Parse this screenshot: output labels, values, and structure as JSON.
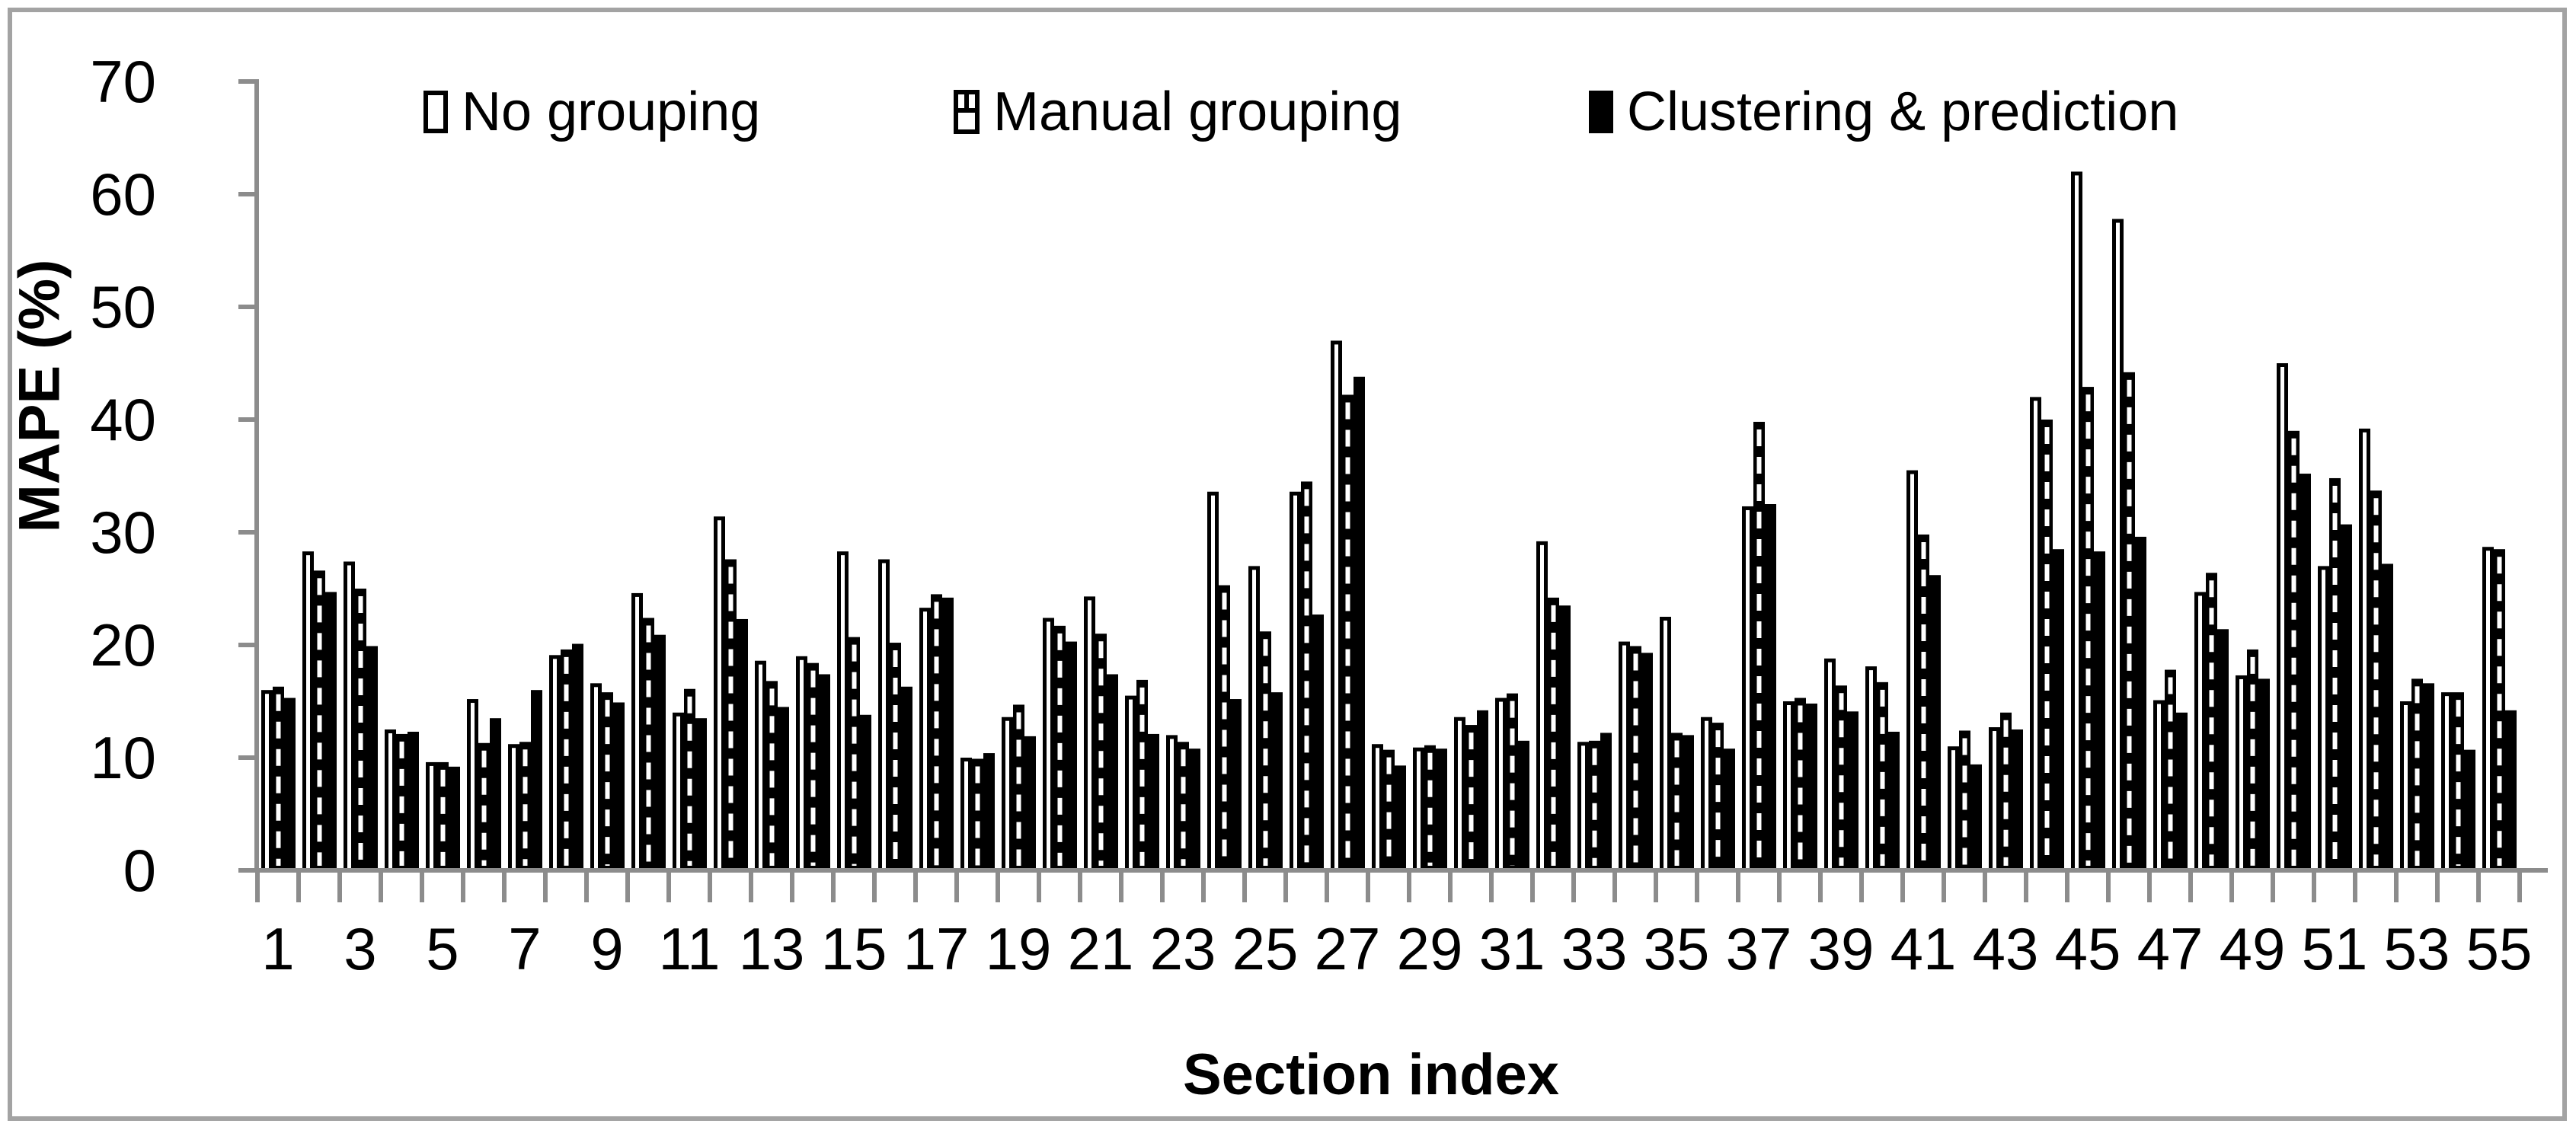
{
  "chart_data": {
    "type": "bar",
    "title": "",
    "xlabel": "Section index",
    "ylabel": "MAPE (%)",
    "ylim": [
      0,
      70
    ],
    "ytick_step": 10,
    "xtick_labels_shown": "odd numbers 1 to 55",
    "grid": false,
    "legend_position": "top",
    "colors": {
      "axis": "#8c8c8c",
      "bar_outline": "#000000",
      "bar_fill_solid": "#000000",
      "bar_fill_open": "#ffffff",
      "text": "#000000"
    },
    "categories": [
      1,
      2,
      3,
      4,
      5,
      6,
      7,
      8,
      9,
      10,
      11,
      12,
      13,
      14,
      15,
      16,
      17,
      18,
      19,
      20,
      21,
      22,
      23,
      24,
      25,
      26,
      27,
      28,
      29,
      30,
      31,
      32,
      33,
      34,
      35,
      36,
      37,
      38,
      39,
      40,
      41,
      42,
      43,
      44,
      45,
      46,
      47,
      48,
      49,
      50,
      51,
      52,
      53,
      54,
      55
    ],
    "series": [
      {
        "name": "No grouping",
        "style": "white-outline",
        "values": [
          16.0,
          28.3,
          27.4,
          12.5,
          9.6,
          15.2,
          11.2,
          19.1,
          16.6,
          24.6,
          14.0,
          31.4,
          18.6,
          19.0,
          28.3,
          27.6,
          23.3,
          10.0,
          13.6,
          22.4,
          24.3,
          15.5,
          12.0,
          33.6,
          27.0,
          33.6,
          47.0,
          11.2,
          10.9,
          13.6,
          15.3,
          29.2,
          11.4,
          20.3,
          22.5,
          13.6,
          32.3,
          15.0,
          18.8,
          18.1,
          35.5,
          11.0,
          12.7,
          42.0,
          62.0,
          57.8,
          15.1,
          24.7,
          17.3,
          45.0,
          27.0,
          39.2,
          15.0,
          15.8,
          28.7
        ]
      },
      {
        "name": "Manual grouping",
        "style": "black-dashed-stripe",
        "values": [
          16.3,
          26.6,
          25.0,
          12.1,
          9.6,
          11.3,
          11.4,
          19.6,
          15.8,
          22.4,
          16.1,
          27.6,
          16.8,
          18.4,
          20.7,
          20.2,
          24.5,
          9.9,
          14.7,
          21.7,
          21.0,
          16.9,
          11.4,
          25.3,
          21.2,
          34.5,
          42.2,
          10.7,
          11.1,
          12.9,
          15.7,
          24.2,
          11.5,
          19.9,
          12.2,
          13.1,
          39.8,
          15.3,
          16.4,
          16.7,
          29.8,
          12.4,
          14.0,
          40.0,
          42.9,
          44.2,
          17.8,
          26.4,
          19.6,
          39.0,
          34.8,
          33.7,
          17.0,
          15.8,
          28.5
        ]
      },
      {
        "name": "Clustering & prediction",
        "style": "black-solid",
        "values": [
          15.3,
          24.7,
          19.9,
          12.3,
          9.2,
          13.5,
          16.0,
          20.1,
          14.9,
          20.9,
          13.5,
          22.3,
          14.5,
          17.4,
          13.8,
          16.3,
          24.2,
          10.4,
          11.9,
          20.3,
          17.4,
          12.1,
          10.8,
          15.2,
          15.8,
          22.7,
          43.8,
          9.3,
          10.8,
          14.2,
          11.5,
          23.5,
          12.2,
          19.3,
          12.0,
          10.8,
          32.5,
          14.8,
          14.1,
          12.3,
          26.2,
          9.4,
          12.5,
          28.5,
          28.3,
          29.6,
          14.0,
          21.4,
          17.0,
          35.2,
          30.7,
          27.2,
          16.6,
          10.7,
          14.2
        ]
      }
    ]
  }
}
